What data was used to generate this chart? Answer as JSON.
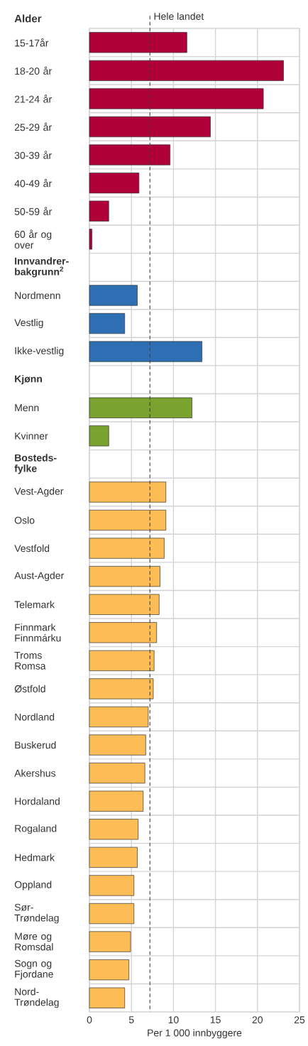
{
  "chart_data": {
    "type": "bar",
    "orientation": "horizontal",
    "title": "Alder",
    "xlabel": "Per 1 000 innbyggere",
    "categories": [
      "15-17år",
      "18-20 år",
      "21-24 år",
      "25-29 år",
      "30-39 år",
      "40-49 år",
      "50-59 år",
      "60 år og over",
      "Innvandrer-bakgrunn$^{2}$",
      "Nordmenn",
      "Vestlig",
      "Ikke-vestlig",
      "Kjønn",
      "Menn",
      "Kvinner",
      "Bosteds-fylke",
      "Vest-Agder",
      "Oslo",
      "Vestfold",
      "Aust-Agder",
      "Telemark",
      "Finnmark Finnmárku",
      "Troms Romsa",
      "Østfold",
      "Nordland",
      "Buskerud",
      "Akershus",
      "Hordaland",
      "Rogaland",
      "Hedmark",
      "Oppland",
      "Sør-Trøndelag",
      "Møre og Romsdal",
      "Sogn og Fjordane",
      "Nord-Trøndelag"
    ],
    "values": [
      11.6,
      23.1,
      20.7,
      14.4,
      9.6,
      5.9,
      2.3,
      0.3,
      null,
      5.7,
      4.2,
      13.4,
      null,
      12.2,
      2.3,
      null,
      9.1,
      9.1,
      8.9,
      8.4,
      8.3,
      8.0,
      7.7,
      7.6,
      7.0,
      6.7,
      6.6,
      6.4,
      5.8,
      5.7,
      5.3,
      5.3,
      4.9,
      4.7,
      4.2
    ],
    "colors": [
      "#b0003a",
      "#b0003a",
      "#b0003a",
      "#b0003a",
      "#b0003a",
      "#b0003a",
      "#b0003a",
      "#b0003a",
      null,
      "#2e6fb3",
      "#2e6fb3",
      "#2e6fb3",
      null,
      "#7aa22f",
      "#7aa22f",
      null,
      "#fdbd56",
      "#fdbd56",
      "#fdbd56",
      "#fdbd56",
      "#fdbd56",
      "#fdbd56",
      "#fdbd56",
      "#fdbd56",
      "#fdbd56",
      "#fdbd56",
      "#fdbd56",
      "#fdbd56",
      "#fdbd56",
      "#fdbd56",
      "#fdbd56",
      "#fdbd56",
      "#fdbd56",
      "#fdbd56",
      "#fdbd56"
    ],
    "xlim": [
      0,
      25
    ],
    "xticks": [
      0,
      5,
      10,
      15,
      20,
      25
    ],
    "grid": true,
    "ref_lines": [
      {
        "axis": "x",
        "value": 7.2,
        "label": "Hele landet",
        "line_style": "dashed",
        "color": "#404040"
      }
    ]
  }
}
